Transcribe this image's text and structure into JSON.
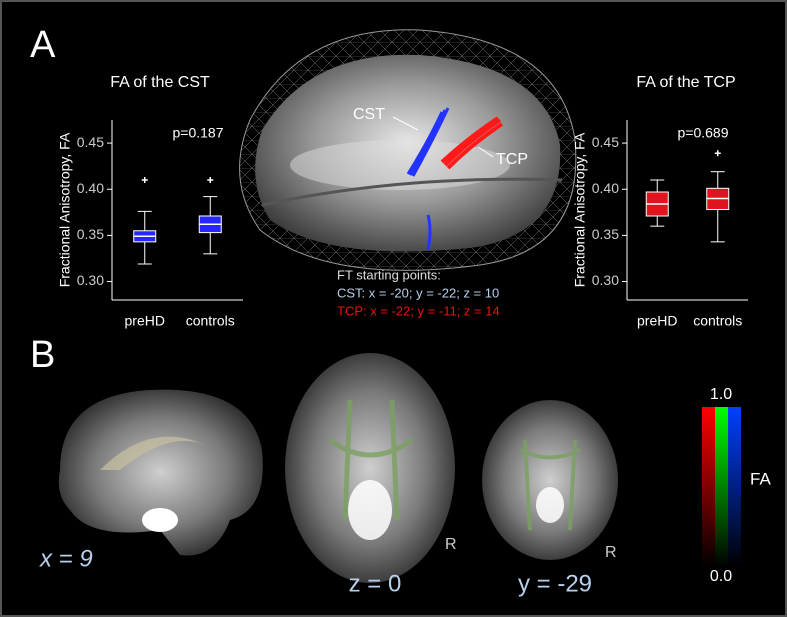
{
  "chart_data": [
    {
      "type": "box",
      "title": "FA of the CST",
      "ylabel": "Fractional Anisotropy, FA",
      "annotation": "p=0.187",
      "categories": [
        "preHD",
        "controls"
      ],
      "color": "#2626ff",
      "boxes": [
        {
          "low": 0.319,
          "q1": 0.343,
          "median": 0.349,
          "q3": 0.355,
          "high": 0.376,
          "outliers": [
            0.41
          ]
        },
        {
          "low": 0.33,
          "q1": 0.353,
          "median": 0.362,
          "q3": 0.371,
          "high": 0.392,
          "outliers": [
            0.41
          ]
        }
      ],
      "ylim": [
        0.28,
        0.475
      ],
      "yticks": [
        {
          "value": 0.3,
          "label": "0.30"
        },
        0.35,
        {
          "value": 0.4,
          "label": "0.40"
        },
        0.45
      ]
    },
    {
      "type": "box",
      "title": "FA of the TCP",
      "ylabel": "Fractional Anisotropy, FA",
      "annotation": "p=0.689",
      "categories": [
        "preHD",
        "controls"
      ],
      "color": "#e0141e",
      "boxes": [
        {
          "low": 0.36,
          "q1": 0.371,
          "median": 0.384,
          "q3": 0.397,
          "high": 0.41,
          "outliers": []
        },
        {
          "low": 0.343,
          "q1": 0.378,
          "median": 0.39,
          "q3": 0.401,
          "high": 0.419,
          "outliers": [
            0.439
          ]
        }
      ],
      "ylim": [
        0.28,
        0.475
      ],
      "yticks": [
        {
          "value": 0.3,
          "label": "0.30"
        },
        0.35,
        {
          "value": 0.4,
          "label": "0.40"
        },
        0.45
      ]
    }
  ],
  "figure": {
    "panel_a": "A",
    "panel_b": "B",
    "tract_labels": [
      "CST",
      "TCP"
    ],
    "ft_heading": "FT starting points:",
    "ft_cst": "CST: x = -20; y = -22; z = 10",
    "ft_tcp": "TCP: x = -22; y = -11; z = 14",
    "slices": [
      "x = 9",
      "z = 0",
      "y = -29"
    ],
    "side_marks": [
      "R",
      "R"
    ],
    "colorbar_top": "1.0",
    "colorbar_bottom": "0.0",
    "colorbar_label": "FA"
  }
}
